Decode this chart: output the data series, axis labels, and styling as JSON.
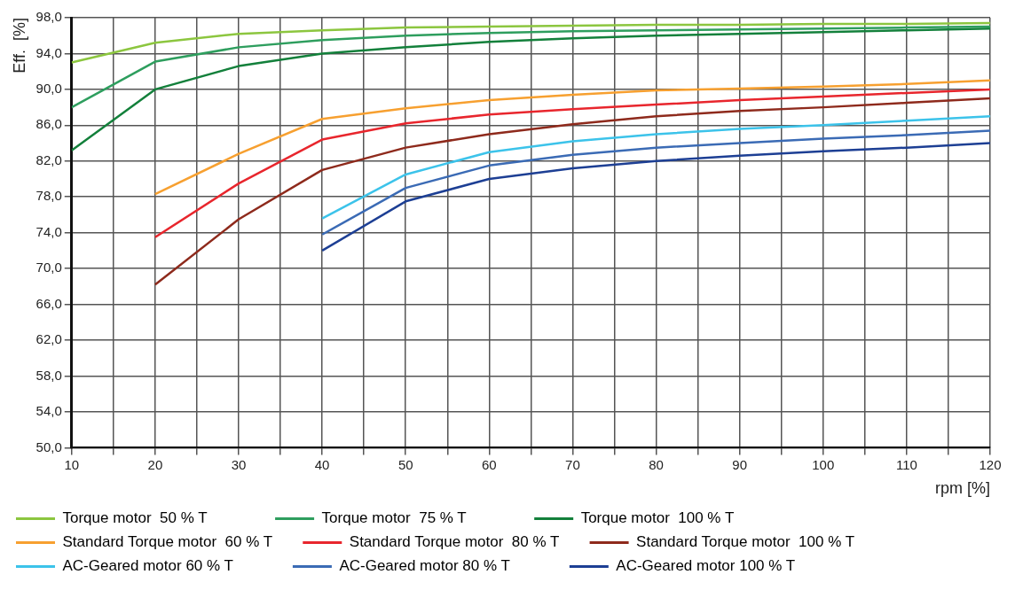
{
  "chart_data": {
    "type": "line",
    "xlabel": "rpm [%]",
    "ylabel": "Eff.  [%]",
    "xlim": [
      10,
      120
    ],
    "ylim": [
      50,
      98
    ],
    "xticks": [
      10,
      {
        "value": 15,
        "label": null
      },
      20,
      {
        "value": 25,
        "label": null
      },
      30,
      {
        "value": 35,
        "label": null
      },
      40,
      {
        "value": 45,
        "label": null
      },
      50,
      {
        "value": 55,
        "label": null
      },
      60,
      {
        "value": 65,
        "label": null
      },
      70,
      {
        "value": 75,
        "label": null
      },
      80,
      {
        "value": 85,
        "label": null
      },
      90,
      {
        "value": 95,
        "label": null
      },
      100,
      {
        "value": 105,
        "label": null
      },
      110,
      {
        "value": 115,
        "label": null
      },
      120
    ],
    "yticks": [
      {
        "value": 50,
        "label": "50,0"
      },
      {
        "value": 54,
        "label": "54,0"
      },
      {
        "value": 58,
        "label": "58,0"
      },
      {
        "value": 62,
        "label": "62,0"
      },
      {
        "value": 66,
        "label": "66,0"
      },
      {
        "value": 70,
        "label": "70,0"
      },
      {
        "value": 74,
        "label": "74,0"
      },
      {
        "value": 78,
        "label": "78,0"
      },
      {
        "value": 82,
        "label": "82,0"
      },
      {
        "value": 86,
        "label": "86,0"
      },
      {
        "value": 90,
        "label": "90,0"
      },
      {
        "value": 94,
        "label": "94,0"
      },
      {
        "value": 98,
        "label": "98,0"
      }
    ],
    "grid": true,
    "legend": "bottom",
    "marker": "none",
    "line_style": "solid",
    "series": [
      {
        "name": "Torque motor  50 % T",
        "color": "#8cc63f",
        "x": [
          10,
          20,
          30,
          40,
          50,
          60,
          70,
          80,
          90,
          100,
          110,
          120
        ],
        "values": [
          93.0,
          95.2,
          96.2,
          96.6,
          96.9,
          97.0,
          97.1,
          97.2,
          97.2,
          97.3,
          97.3,
          97.4
        ]
      },
      {
        "name": "Torque motor  75 % T",
        "color": "#2e9e5e",
        "x": [
          10,
          20,
          30,
          40,
          50,
          60,
          70,
          80,
          90,
          100,
          110,
          120
        ],
        "values": [
          88.0,
          93.1,
          94.7,
          95.5,
          96.0,
          96.3,
          96.5,
          96.6,
          96.7,
          96.8,
          96.9,
          97.0
        ]
      },
      {
        "name": "Torque motor  100 % T",
        "color": "#13803b",
        "x": [
          10,
          20,
          30,
          40,
          50,
          60,
          70,
          80,
          90,
          100,
          110,
          120
        ],
        "values": [
          83.2,
          90.0,
          92.6,
          94.0,
          94.7,
          95.3,
          95.7,
          96.0,
          96.2,
          96.4,
          96.6,
          96.8
        ]
      },
      {
        "name": "Standard Torque motor  60 % T",
        "color": "#f7a030",
        "x": [
          20,
          30,
          40,
          50,
          60,
          70,
          80,
          90,
          100,
          110,
          120
        ],
        "values": [
          78.3,
          82.8,
          86.7,
          87.9,
          88.8,
          89.4,
          89.9,
          90.1,
          90.3,
          90.6,
          91.0
        ]
      },
      {
        "name": "Standard Torque motor  80 % T",
        "color": "#e8262d",
        "x": [
          20,
          30,
          40,
          50,
          60,
          70,
          80,
          90,
          100,
          110,
          120
        ],
        "values": [
          73.5,
          79.5,
          84.4,
          86.2,
          87.2,
          87.8,
          88.3,
          88.8,
          89.2,
          89.6,
          90.0
        ]
      },
      {
        "name": "Standard Torque motor  100 % T",
        "color": "#8e2a1c",
        "x": [
          20,
          30,
          40,
          50,
          60,
          70,
          80,
          90,
          100,
          110,
          120
        ],
        "values": [
          68.2,
          75.5,
          81.0,
          83.5,
          85.0,
          86.1,
          87.0,
          87.6,
          88.0,
          88.5,
          89.0
        ]
      },
      {
        "name": "AC-Geared motor 60 % T",
        "color": "#3cc3ea",
        "x": [
          40,
          50,
          60,
          70,
          80,
          90,
          100,
          110,
          120
        ],
        "values": [
          75.6,
          80.5,
          83.0,
          84.2,
          85.0,
          85.6,
          86.0,
          86.5,
          87.0
        ]
      },
      {
        "name": "AC-Geared motor 80 % T",
        "color": "#3b6bb5",
        "x": [
          40,
          50,
          60,
          70,
          80,
          90,
          100,
          110,
          120
        ],
        "values": [
          73.8,
          79.0,
          81.5,
          82.7,
          83.5,
          84.0,
          84.5,
          84.9,
          85.4
        ]
      },
      {
        "name": "AC-Geared motor 100 % T",
        "color": "#1d3f94",
        "x": [
          40,
          50,
          60,
          70,
          80,
          90,
          100,
          110,
          120
        ],
        "values": [
          72.0,
          77.5,
          80.0,
          81.2,
          82.0,
          82.6,
          83.1,
          83.5,
          84.0
        ]
      }
    ]
  }
}
